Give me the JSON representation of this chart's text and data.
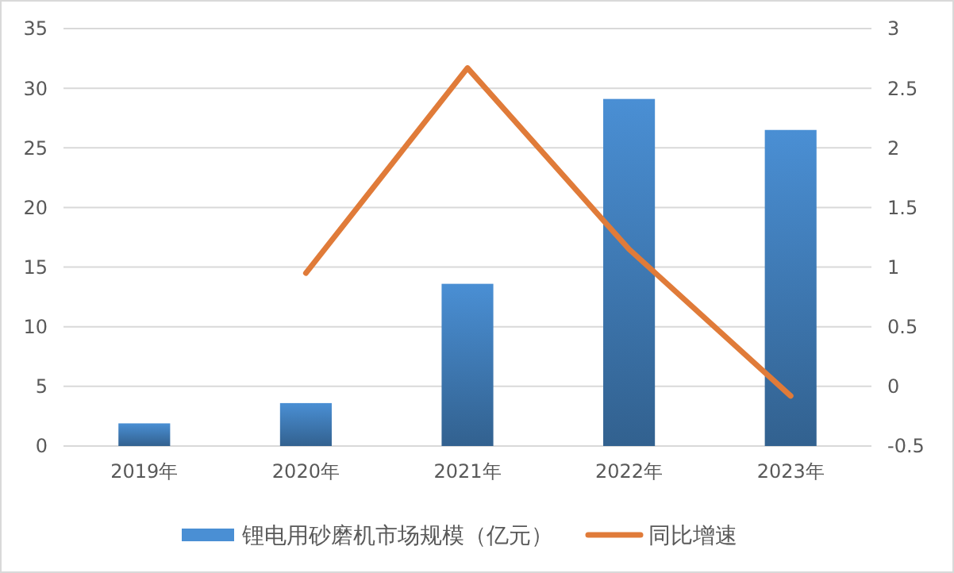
{
  "chart_data": {
    "type": "bar",
    "categories": [
      "2019年",
      "2020年",
      "2021年",
      "2022年",
      "2023年"
    ],
    "series": [
      {
        "name": "锂电用砂磨机市场规模（亿元）",
        "color": "#4a8fd4",
        "values": [
          1.9,
          3.6,
          13.6,
          29.1,
          26.5
        ]
      },
      {
        "name": "同比增速",
        "type": "line",
        "axis": "y2",
        "color": "#e07b39",
        "values": [
          null,
          0.95,
          2.67,
          1.15,
          -0.08
        ]
      }
    ],
    "ylim": [
      0,
      35
    ],
    "yticks": [
      0,
      5,
      10,
      15,
      20,
      25,
      30,
      35
    ],
    "y2lim": [
      -0.5,
      3
    ],
    "y2ticks": [
      -0.5,
      0,
      0.5,
      1,
      1.5,
      2,
      2.5,
      3
    ],
    "grid": "y",
    "legend": "bottom",
    "marker": "none",
    "line_style": "solid"
  }
}
